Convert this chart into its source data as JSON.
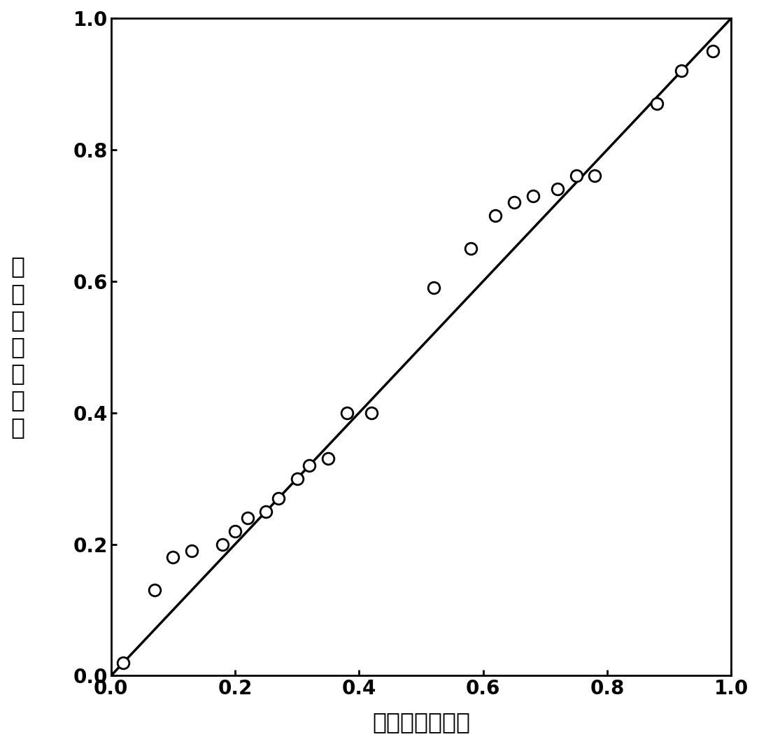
{
  "x_points": [
    0.02,
    0.07,
    0.1,
    0.13,
    0.18,
    0.2,
    0.22,
    0.25,
    0.27,
    0.3,
    0.32,
    0.35,
    0.38,
    0.42,
    0.52,
    0.58,
    0.62,
    0.65,
    0.68,
    0.72,
    0.75,
    0.78,
    0.88,
    0.92,
    0.97
  ],
  "y_points": [
    0.02,
    0.13,
    0.18,
    0.19,
    0.2,
    0.22,
    0.24,
    0.25,
    0.27,
    0.3,
    0.32,
    0.33,
    0.4,
    0.4,
    0.59,
    0.65,
    0.7,
    0.72,
    0.73,
    0.74,
    0.76,
    0.76,
    0.87,
    0.92,
    0.95
  ],
  "line_x": [
    0.0,
    1.0
  ],
  "line_y": [
    0.0,
    1.0
  ],
  "xlabel": "观测的累积概率",
  "ylabel": "期望的累积概率",
  "xlim": [
    0.0,
    1.0
  ],
  "ylim": [
    0.0,
    1.0
  ],
  "xticks": [
    0.0,
    0.2,
    0.4,
    0.6,
    0.8,
    1.0
  ],
  "yticks": [
    0.0,
    0.2,
    0.4,
    0.6,
    0.8,
    1.0
  ],
  "marker_color": "black",
  "marker_facecolor": "white",
  "marker_size": 12,
  "line_color": "black",
  "line_width": 2.5,
  "xlabel_fontsize": 24,
  "ylabel_fontsize": 24,
  "tick_fontsize": 20,
  "background_color": "#ffffff"
}
